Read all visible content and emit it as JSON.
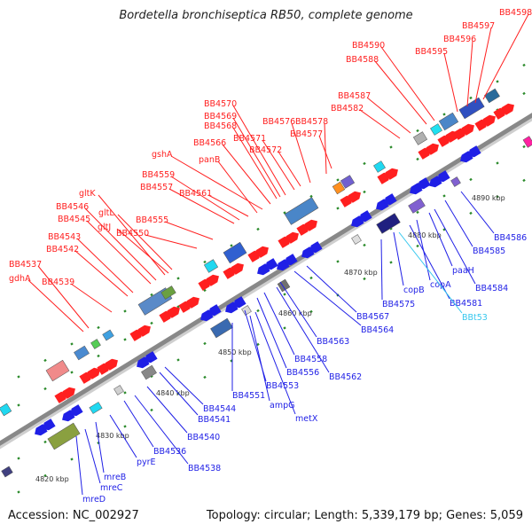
{
  "title": "Bordetella bronchiseptica RB50, complete genome",
  "footer": {
    "accession": "Accession: NC_002927",
    "summary": "Topology: circular; Length: 5,339,179 bp; Genes: 5,059"
  },
  "colors": {
    "forward": "#ff1f1f",
    "reverse": "#1f1fe6",
    "trna": "#36c7ee",
    "backbone": "#888888",
    "dots": "#2a8a2a"
  },
  "kbp_labels": [
    "4820 kbp",
    "4830 kbp",
    "4840 kbp",
    "4850 kbp",
    "4860 kbp",
    "4870 kbp",
    "4880 kbp",
    "4890 kbp"
  ],
  "upper_labels": [
    "BB4598",
    "BB4597",
    "BB4596",
    "BB4595",
    "BB4590",
    "BB4588",
    "BB4587",
    "BB4582",
    "BB4570",
    "BB4569",
    "BB4568",
    "BB4576",
    "BB4578",
    "BB4571",
    "BB4577",
    "BB4572",
    "BB4566",
    "gshA",
    "panB",
    "BB4559",
    "BB4557",
    "BB4561",
    "gltK",
    "BB4546",
    "BB4545",
    "gltL",
    "gltJ",
    "BB4555",
    "BB4543",
    "BB4550",
    "BB4542",
    "BB4537",
    "gdhA",
    "BB4539"
  ],
  "lower_labels": [
    "BB4586",
    "BB4585",
    "BB4584",
    "paaH",
    "copA",
    "BB4581",
    "BBt53",
    "copB",
    "BB4575",
    "BB4567",
    "BB4564",
    "BB4563",
    "BB4558",
    "BB4556",
    "BB4562",
    "BB4553",
    "BB4551",
    "ampG",
    "metX",
    "BB4544",
    "BB4541",
    "BB4540",
    "BB4536",
    "BB4538",
    "pyrE",
    "mreB",
    "mreC",
    "mreD"
  ]
}
